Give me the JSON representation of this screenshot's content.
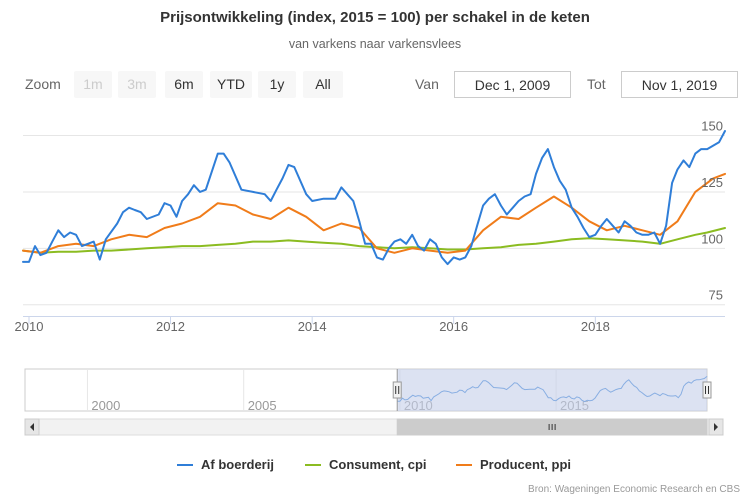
{
  "title": "Prijsontwikkeling (index, 2015 = 100) per schakel in de keten",
  "subtitle": "van varkens naar varkensvlees",
  "range_selector": {
    "zoom_label": "Zoom",
    "buttons": [
      {
        "label": "1m",
        "enabled": false
      },
      {
        "label": "3m",
        "enabled": false
      },
      {
        "label": "6m",
        "enabled": true
      },
      {
        "label": "YTD",
        "enabled": true
      },
      {
        "label": "1y",
        "enabled": true
      },
      {
        "label": "All",
        "enabled": true
      }
    ],
    "from_label": "Van",
    "from_value": "Dec 1, 2009",
    "to_label": "Tot",
    "to_value": "Nov 1, 2019"
  },
  "colors": {
    "farm": "#2f7ed8",
    "consumer": "#8bbc21",
    "producer": "#f07c1a",
    "navigator_mask": "#c5cfe9",
    "grid": "#e6e6e6"
  },
  "chart_data": {
    "type": "line",
    "title": "Prijsontwikkeling (index, 2015 = 100) per schakel in de keten",
    "subtitle": "van varkens naar varkensvlees",
    "x_range": [
      "2009-12-01",
      "2019-11-01"
    ],
    "x_ticks": [
      "2010",
      "2012",
      "2014",
      "2016",
      "2018"
    ],
    "y_ticks": [
      75,
      100,
      125,
      150
    ],
    "ylim": [
      70,
      160
    ],
    "y_axis_side": "right",
    "grid": true,
    "legend": "bottom-center",
    "series": [
      {
        "name": "Af boerderij",
        "color": "#2f7ed8",
        "points": [
          [
            "2009-12-01",
            94
          ],
          [
            "2010-01-01",
            94
          ],
          [
            "2010-02-01",
            101
          ],
          [
            "2010-03-01",
            97
          ],
          [
            "2010-04-01",
            98
          ],
          [
            "2010-05-01",
            103
          ],
          [
            "2010-06-01",
            108
          ],
          [
            "2010-07-01",
            105
          ],
          [
            "2010-08-01",
            107
          ],
          [
            "2010-09-01",
            106
          ],
          [
            "2010-10-01",
            101
          ],
          [
            "2010-11-01",
            102
          ],
          [
            "2010-12-01",
            103
          ],
          [
            "2011-01-01",
            95
          ],
          [
            "2011-02-01",
            104
          ],
          [
            "2011-04-01",
            111
          ],
          [
            "2011-05-01",
            116
          ],
          [
            "2011-06-01",
            118
          ],
          [
            "2011-07-01",
            117
          ],
          [
            "2011-08-01",
            116
          ],
          [
            "2011-09-01",
            113
          ],
          [
            "2011-11-01",
            115
          ],
          [
            "2011-12-01",
            120
          ],
          [
            "2012-01-01",
            119
          ],
          [
            "2012-02-01",
            114
          ],
          [
            "2012-03-01",
            121
          ],
          [
            "2012-04-01",
            124
          ],
          [
            "2012-05-01",
            128
          ],
          [
            "2012-06-01",
            125
          ],
          [
            "2012-07-01",
            126
          ],
          [
            "2012-09-01",
            142
          ],
          [
            "2012-10-01",
            142
          ],
          [
            "2012-11-01",
            138
          ],
          [
            "2013-01-01",
            126
          ],
          [
            "2013-03-01",
            125
          ],
          [
            "2013-05-01",
            124
          ],
          [
            "2013-06-01",
            121
          ],
          [
            "2013-07-01",
            126
          ],
          [
            "2013-08-01",
            131
          ],
          [
            "2013-09-01",
            137
          ],
          [
            "2013-10-01",
            136
          ],
          [
            "2013-12-01",
            124
          ],
          [
            "2014-01-01",
            121
          ],
          [
            "2014-03-01",
            122
          ],
          [
            "2014-05-01",
            122
          ],
          [
            "2014-06-01",
            127
          ],
          [
            "2014-07-01",
            124
          ],
          [
            "2014-08-01",
            121
          ],
          [
            "2014-09-01",
            112
          ],
          [
            "2014-10-01",
            102
          ],
          [
            "2014-11-01",
            102
          ],
          [
            "2014-12-01",
            96
          ],
          [
            "2015-01-01",
            95
          ],
          [
            "2015-02-01",
            100
          ],
          [
            "2015-03-01",
            103
          ],
          [
            "2015-04-01",
            104
          ],
          [
            "2015-05-01",
            102
          ],
          [
            "2015-06-01",
            106
          ],
          [
            "2015-07-01",
            101
          ],
          [
            "2015-08-01",
            99
          ],
          [
            "2015-09-01",
            104
          ],
          [
            "2015-10-01",
            102
          ],
          [
            "2015-11-01",
            96
          ],
          [
            "2015-12-01",
            93
          ],
          [
            "2016-01-01",
            96
          ],
          [
            "2016-02-01",
            95
          ],
          [
            "2016-03-01",
            96
          ],
          [
            "2016-04-01",
            101
          ],
          [
            "2016-05-01",
            110
          ],
          [
            "2016-06-01",
            119
          ],
          [
            "2016-07-01",
            122
          ],
          [
            "2016-08-01",
            124
          ],
          [
            "2016-09-01",
            119
          ],
          [
            "2016-10-01",
            115
          ],
          [
            "2016-11-01",
            118
          ],
          [
            "2016-12-01",
            121
          ],
          [
            "2017-01-01",
            123
          ],
          [
            "2017-02-01",
            124
          ],
          [
            "2017-03-01",
            133
          ],
          [
            "2017-04-01",
            140
          ],
          [
            "2017-05-01",
            144
          ],
          [
            "2017-06-01",
            136
          ],
          [
            "2017-07-01",
            130
          ],
          [
            "2017-08-01",
            126
          ],
          [
            "2017-09-01",
            118
          ],
          [
            "2017-10-01",
            114
          ],
          [
            "2017-11-01",
            109
          ],
          [
            "2017-12-01",
            105
          ],
          [
            "2018-01-01",
            106
          ],
          [
            "2018-02-01",
            110
          ],
          [
            "2018-03-01",
            113
          ],
          [
            "2018-04-01",
            110
          ],
          [
            "2018-05-01",
            107
          ],
          [
            "2018-06-01",
            112
          ],
          [
            "2018-07-01",
            110
          ],
          [
            "2018-08-01",
            107
          ],
          [
            "2018-09-01",
            106
          ],
          [
            "2018-10-01",
            106
          ],
          [
            "2018-11-01",
            107
          ],
          [
            "2018-12-01",
            102
          ],
          [
            "2019-01-01",
            110
          ],
          [
            "2019-02-01",
            129
          ],
          [
            "2019-03-01",
            135
          ],
          [
            "2019-04-01",
            139
          ],
          [
            "2019-05-01",
            136
          ],
          [
            "2019-06-01",
            142
          ],
          [
            "2019-07-01",
            144
          ],
          [
            "2019-08-01",
            144
          ],
          [
            "2019-10-01",
            147
          ],
          [
            "2019-11-01",
            152
          ]
        ]
      },
      {
        "name": "Consument, cpi",
        "color": "#8bbc21",
        "points": [
          [
            "2009-12-01",
            99
          ],
          [
            "2010-03-01",
            98
          ],
          [
            "2010-06-01",
            98.5
          ],
          [
            "2010-09-01",
            98.5
          ],
          [
            "2010-12-01",
            99
          ],
          [
            "2011-03-01",
            99
          ],
          [
            "2011-06-01",
            99.5
          ],
          [
            "2011-09-01",
            100
          ],
          [
            "2011-12-01",
            100.5
          ],
          [
            "2012-03-01",
            101
          ],
          [
            "2012-06-01",
            101
          ],
          [
            "2012-09-01",
            101.5
          ],
          [
            "2012-12-01",
            102
          ],
          [
            "2013-03-01",
            103
          ],
          [
            "2013-06-01",
            103
          ],
          [
            "2013-09-01",
            103.5
          ],
          [
            "2013-12-01",
            103
          ],
          [
            "2014-03-01",
            102.5
          ],
          [
            "2014-06-01",
            102
          ],
          [
            "2014-09-01",
            101
          ],
          [
            "2014-12-01",
            100.5
          ],
          [
            "2015-03-01",
            100
          ],
          [
            "2015-06-01",
            100.5
          ],
          [
            "2015-09-01",
            100
          ],
          [
            "2015-12-01",
            99.5
          ],
          [
            "2016-03-01",
            99.5
          ],
          [
            "2016-06-01",
            100
          ],
          [
            "2016-09-01",
            100.5
          ],
          [
            "2016-12-01",
            101.5
          ],
          [
            "2017-03-01",
            102
          ],
          [
            "2017-06-01",
            103
          ],
          [
            "2017-09-01",
            104
          ],
          [
            "2017-12-01",
            104.5
          ],
          [
            "2018-03-01",
            104
          ],
          [
            "2018-06-01",
            103.5
          ],
          [
            "2018-09-01",
            103
          ],
          [
            "2018-12-01",
            102
          ],
          [
            "2019-03-01",
            104
          ],
          [
            "2019-06-01",
            106
          ],
          [
            "2019-08-01",
            107
          ],
          [
            "2019-11-01",
            109
          ]
        ]
      },
      {
        "name": "Producent, ppi",
        "color": "#f07c1a",
        "points": [
          [
            "2009-12-01",
            99
          ],
          [
            "2010-03-01",
            98
          ],
          [
            "2010-06-01",
            101
          ],
          [
            "2010-09-01",
            102
          ],
          [
            "2010-12-01",
            101
          ],
          [
            "2011-03-01",
            104
          ],
          [
            "2011-06-01",
            106
          ],
          [
            "2011-09-01",
            105
          ],
          [
            "2011-12-01",
            109
          ],
          [
            "2012-03-01",
            111
          ],
          [
            "2012-06-01",
            114
          ],
          [
            "2012-09-01",
            120
          ],
          [
            "2012-12-01",
            119
          ],
          [
            "2013-03-01",
            115
          ],
          [
            "2013-06-01",
            113
          ],
          [
            "2013-09-01",
            118
          ],
          [
            "2013-12-01",
            114
          ],
          [
            "2014-03-01",
            108
          ],
          [
            "2014-06-01",
            111
          ],
          [
            "2014-09-01",
            109
          ],
          [
            "2014-12-01",
            100
          ],
          [
            "2015-03-01",
            98
          ],
          [
            "2015-06-01",
            100
          ],
          [
            "2015-09-01",
            99
          ],
          [
            "2015-12-01",
            98
          ],
          [
            "2016-03-01",
            99
          ],
          [
            "2016-06-01",
            108
          ],
          [
            "2016-09-01",
            114
          ],
          [
            "2016-12-01",
            113
          ],
          [
            "2017-03-01",
            118
          ],
          [
            "2017-06-01",
            123
          ],
          [
            "2017-09-01",
            118
          ],
          [
            "2017-12-01",
            112
          ],
          [
            "2018-03-01",
            108
          ],
          [
            "2018-06-01",
            110
          ],
          [
            "2018-09-01",
            108
          ],
          [
            "2018-12-01",
            106
          ],
          [
            "2019-03-01",
            112
          ],
          [
            "2019-06-01",
            125
          ],
          [
            "2019-09-01",
            131
          ],
          [
            "2019-11-01",
            133
          ]
        ]
      }
    ],
    "navigator": {
      "x_range": [
        "1998-01-01",
        "2019-11-01"
      ],
      "x_ticks": [
        "2000",
        "2005",
        "2010",
        "2015"
      ],
      "selected_range": [
        "2009-12-01",
        "2019-11-01"
      ]
    }
  },
  "credits": "Bron: Wageningen Economic Research en CBS"
}
